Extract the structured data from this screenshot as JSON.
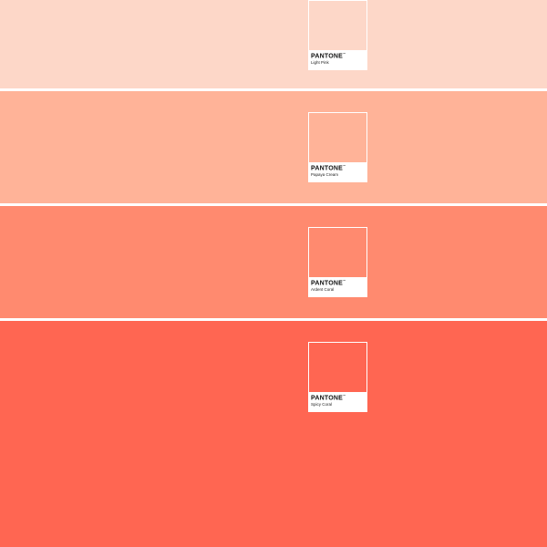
{
  "brand": "PANTONE",
  "swatches": [
    {
      "name": "Light Pink",
      "color": "#FDD7C8"
    },
    {
      "name": "Papaya Cream",
      "color": "#FFB398"
    },
    {
      "name": "Ardent Coral",
      "color": "#FF8A6F"
    },
    {
      "name": "Spicy Coral",
      "color": "#FF6652"
    }
  ]
}
